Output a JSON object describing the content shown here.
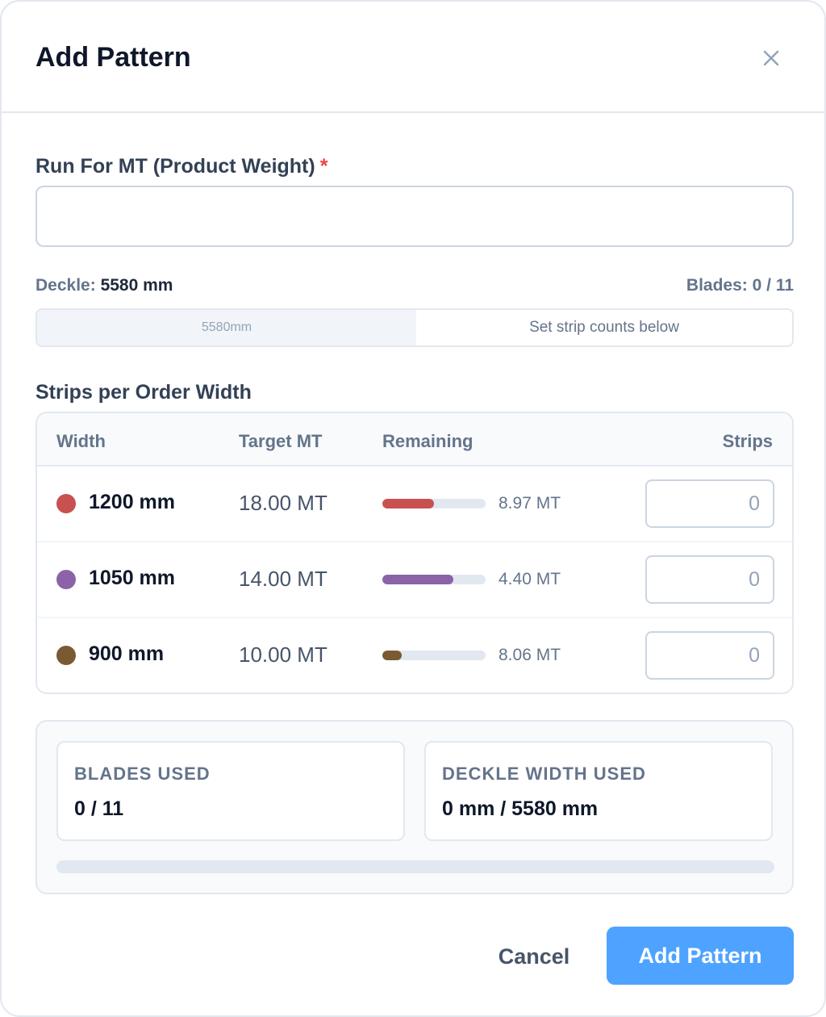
{
  "dialog": {
    "title": "Add Pattern",
    "close_icon": "close-icon"
  },
  "run_for": {
    "label": "Run For MT (Product Weight)",
    "required_mark": "*",
    "value": "",
    "placeholder": ""
  },
  "deckle": {
    "label": "Deckle:",
    "value": "5580 mm",
    "blades_text": "Blades: 0 / 11",
    "bar_segment_label": "5580mm",
    "bar_hint": "Set strip counts below"
  },
  "strips": {
    "title": "Strips per Order Width",
    "headers": {
      "width": "Width",
      "target": "Target MT",
      "remaining": "Remaining",
      "strips": "Strips"
    },
    "rows": [
      {
        "width": "1200 mm",
        "target": "18.00 MT",
        "remaining": "8.97 MT",
        "remaining_fraction": 0.5,
        "strips_placeholder": "0",
        "color": "#c8514f"
      },
      {
        "width": "1050 mm",
        "target": "14.00 MT",
        "remaining": "4.40 MT",
        "remaining_fraction": 0.69,
        "strips_placeholder": "0",
        "color": "#8a63a8"
      },
      {
        "width": "900 mm",
        "target": "10.00 MT",
        "remaining": "8.06 MT",
        "remaining_fraction": 0.19,
        "strips_placeholder": "0",
        "color": "#7a5a33"
      }
    ]
  },
  "summary": {
    "blades_label": "BLADES USED",
    "blades_value": "0 / 11",
    "deckle_label": "DECKLE WIDTH USED",
    "deckle_value": "0 mm / 5580 mm",
    "usage_fraction": 0
  },
  "actions": {
    "cancel_label": "Cancel",
    "add_label": "Add Pattern"
  }
}
